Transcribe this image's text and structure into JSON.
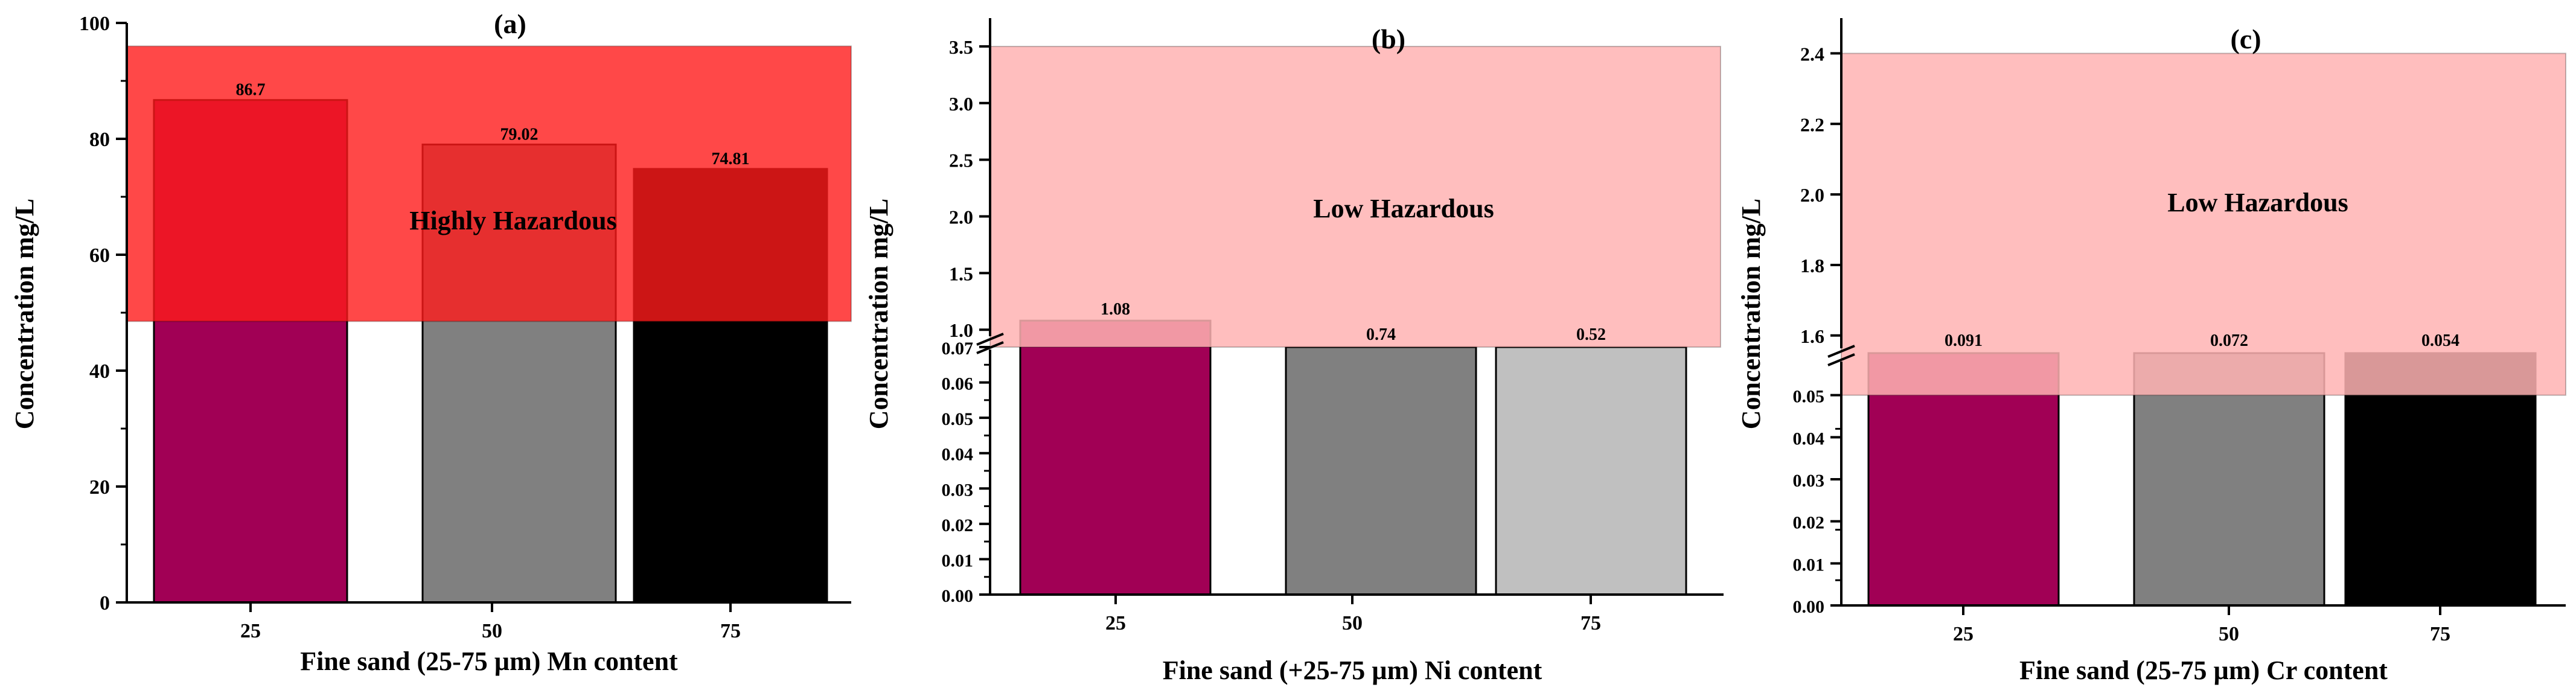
{
  "figure": {
    "colors": {
      "bar_25": "#a10055",
      "bar_50": "#808080",
      "bar_75_dark": "#000000",
      "bar_75_light": "#c0c0c0",
      "band_high": "#ff1a1a",
      "band_low": "#ffb3b3"
    }
  },
  "chart_data": [
    {
      "type": "bar",
      "panel": "(a)",
      "title": "(a)",
      "xlabel": "Fine sand (25-75 µm) Mn content",
      "ylabel": "Concentration mg/L",
      "categories": [
        "25",
        "50",
        "75"
      ],
      "values": [
        86.7,
        79.02,
        74.81
      ],
      "value_labels": [
        "86.7",
        "79.02",
        "74.81"
      ],
      "bar_colors": [
        "#a10055",
        "#808080",
        "#000000"
      ],
      "ylim": [
        0,
        100
      ],
      "yticks": [
        "0",
        "20",
        "40",
        "60",
        "80",
        "100"
      ],
      "band": {
        "label": "Highly Hazardous",
        "from": 48.5,
        "to": 96,
        "color": "#ff1a1a"
      },
      "axis_break": false
    },
    {
      "type": "bar",
      "panel": "(b)",
      "title": "(b)",
      "xlabel": "Fine sand (+25-75 µm) Ni content",
      "ylabel": "Concentration mg/L",
      "categories": [
        "25",
        "50",
        "75"
      ],
      "values": [
        1.08,
        0.74,
        0.52
      ],
      "value_labels": [
        "1.08",
        "0.74",
        "0.52"
      ],
      "bar_colors": [
        "#a10055",
        "#808080",
        "#c0c0c0"
      ],
      "axis_break": true,
      "lower_ylim": [
        0,
        0.07
      ],
      "lower_yticks": [
        "0.00",
        "0.01",
        "0.02",
        "0.03",
        "0.04",
        "0.05",
        "0.06",
        "0.07"
      ],
      "upper_ylim": [
        0.9,
        3.75
      ],
      "upper_yticks": [
        "1.0",
        "1.5",
        "2.0",
        "2.5",
        "3.0",
        "3.5"
      ],
      "band": {
        "label": "Low Hazardous",
        "from": 0.9,
        "to": 3.5,
        "color": "#ffb3b3"
      }
    },
    {
      "type": "bar",
      "panel": "(c)",
      "title": "(c)",
      "xlabel": "Fine sand (25-75 µm) Cr content",
      "ylabel": "Concentration mg/L",
      "categories": [
        "25",
        "50",
        "75"
      ],
      "values": [
        0.091,
        0.072,
        0.054
      ],
      "value_labels": [
        "0.091",
        "0.072",
        "0.054"
      ],
      "bar_colors": [
        "#a10055",
        "#808080",
        "#000000"
      ],
      "axis_break": true,
      "lower_ylim": [
        0,
        0.06
      ],
      "lower_yticks": [
        "0.00",
        "0.01",
        "0.02",
        "0.03",
        "0.04",
        "0.05"
      ],
      "upper_ylim": [
        1.55,
        2.5
      ],
      "upper_yticks": [
        "1.6",
        "1.8",
        "2.0",
        "2.2",
        "2.4"
      ],
      "band": {
        "label": "Low Hazardous",
        "from": 0.05,
        "to": 2.4,
        "color": "#ffb3b3"
      }
    }
  ]
}
